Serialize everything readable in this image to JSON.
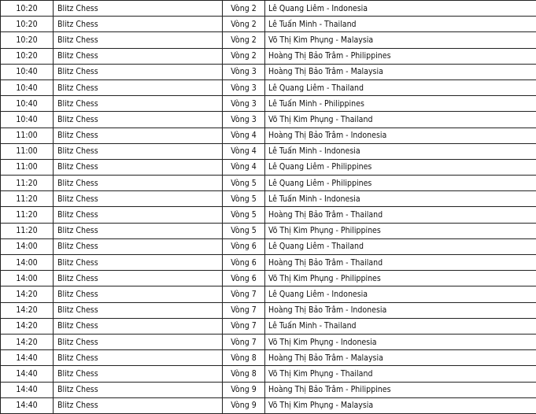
{
  "table": {
    "rows": [
      [
        "10:20",
        "Blitz Chess",
        "Vòng 2",
        "Lê Quang Liêm - Indonesia"
      ],
      [
        "10:20",
        "Blitz Chess",
        "Vòng 2",
        "Lê Tuấn Minh - Thailand"
      ],
      [
        "10:20",
        "Blitz Chess",
        "Vòng 2",
        "Võ Thị Kim Phụng - Malaysia"
      ],
      [
        "10:20",
        "Blitz Chess",
        "Vòng 2",
        "Hoàng Thị Bảo Trâm - Philippines"
      ],
      [
        "10:40",
        "Blitz Chess",
        "Vòng 3",
        "Hoàng Thị Bảo Trâm - Malaysia"
      ],
      [
        "10:40",
        "Blitz Chess",
        "Vòng 3",
        "Lê Quang Liêm - Thailand"
      ],
      [
        "10:40",
        "Blitz Chess",
        "Vòng 3",
        "Lê Tuấn Minh - Philippines"
      ],
      [
        "10:40",
        "Blitz Chess",
        "Vòng 3",
        "Võ Thị Kim Phụng - Thailand"
      ],
      [
        "11:00",
        "Blitz Chess",
        "Vòng 4",
        "Hoàng Thị Bảo Trâm - Indonesia"
      ],
      [
        "11:00",
        "Blitz Chess",
        "Vòng 4",
        "Lê Tuấn Minh - Indonesia"
      ],
      [
        "11:00",
        "Blitz Chess",
        "Vòng 4",
        "Lê Quang Liêm - Philippines"
      ],
      [
        "11:20",
        "Blitz Chess",
        "Vòng 5",
        "Lê Quang Liêm - Philippines"
      ],
      [
        "11:20",
        "Blitz Chess",
        "Vòng 5",
        "Lê Tuấn Minh - Indonesia"
      ],
      [
        "11:20",
        "Blitz Chess",
        "Vòng 5",
        "Hoàng Thị Bảo Trâm - Thailand"
      ],
      [
        "11:20",
        "Blitz Chess",
        "Vòng 5",
        "Võ Thị Kim Phụng - Philippines"
      ],
      [
        "14:00",
        "Blitz Chess",
        "Vòng 6",
        "Lê Quang Liêm - Thailand"
      ],
      [
        "14:00",
        "Blitz Chess",
        "Vòng 6",
        "Hoàng Thị Bảo Trâm - Thailand"
      ],
      [
        "14:00",
        "Blitz Chess",
        "Vòng 6",
        "Võ Thị Kim Phụng - Philippines"
      ],
      [
        "14:20",
        "Blitz Chess",
        "Vòng 7",
        "Lê Quang Liêm - Indonesia"
      ],
      [
        "14:20",
        "Blitz Chess",
        "Vòng 7",
        "Hoàng Thị Bảo Trâm - Indonesia"
      ],
      [
        "14:20",
        "Blitz Chess",
        "Vòng 7",
        "Lê Tuấn Minh - Thailand"
      ],
      [
        "14:20",
        "Blitz Chess",
        "Vòng 7",
        "Võ Thị Kim Phụng - Indonesia"
      ],
      [
        "14:40",
        "Blitz Chess",
        "Vòng 8",
        "Hoàng Thị Bảo Trâm - Malaysia"
      ],
      [
        "14:40",
        "Blitz Chess",
        "Vòng 8",
        "Võ Thị Kim Phụng - Thailand"
      ],
      [
        "14:40",
        "Blitz Chess",
        "Vòng 9",
        "Hoàng Thị Bảo Trâm - Philippines"
      ],
      [
        "14:40",
        "Blitz Chess",
        "Vòng 9",
        "Võ Thị Kim Phụng - Malaysia"
      ]
    ]
  }
}
